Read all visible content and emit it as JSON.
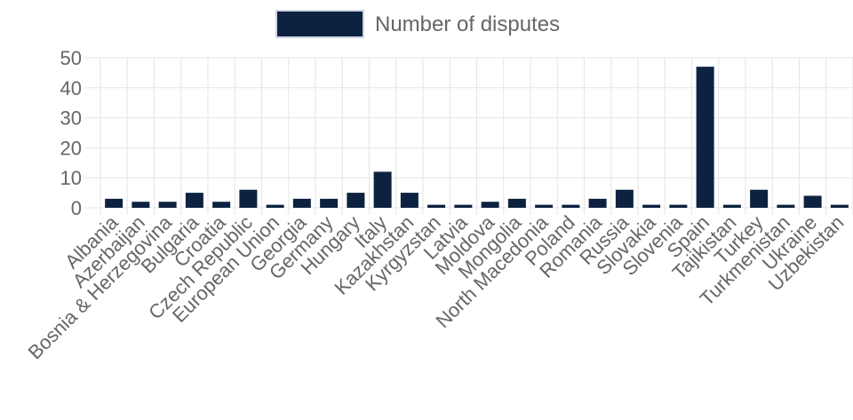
{
  "chart_data": {
    "type": "bar",
    "categories": [
      "Albania",
      "Azerbaijan",
      "Bosnia & Herzegovina",
      "Bulgaria",
      "Croatia",
      "Czech Republic",
      "European Union",
      "Georgia",
      "Germany",
      "Hungary",
      "Italy",
      "Kazakhstan",
      "Kyrgyzstan",
      "Latvia",
      "Moldova",
      "Mongolia",
      "North Macedonia",
      "Poland",
      "Romania",
      "Russia",
      "Slovakia",
      "Slovenia",
      "Spain",
      "Tajikistan",
      "Turkey",
      "Turkmenistan",
      "Ukraine",
      "Uzbekistan"
    ],
    "series": [
      {
        "name": "Number of disputes",
        "color": "#0d2240",
        "values": [
          3,
          2,
          2,
          5,
          2,
          6,
          1,
          3,
          3,
          5,
          12,
          5,
          1,
          1,
          2,
          3,
          1,
          1,
          3,
          6,
          1,
          1,
          47,
          1,
          6,
          1,
          4,
          1
        ]
      }
    ],
    "yticks": [
      0,
      10,
      20,
      30,
      40,
      50
    ],
    "ylim": [
      0,
      50
    ],
    "grid": true,
    "legend_position": "top-center"
  }
}
